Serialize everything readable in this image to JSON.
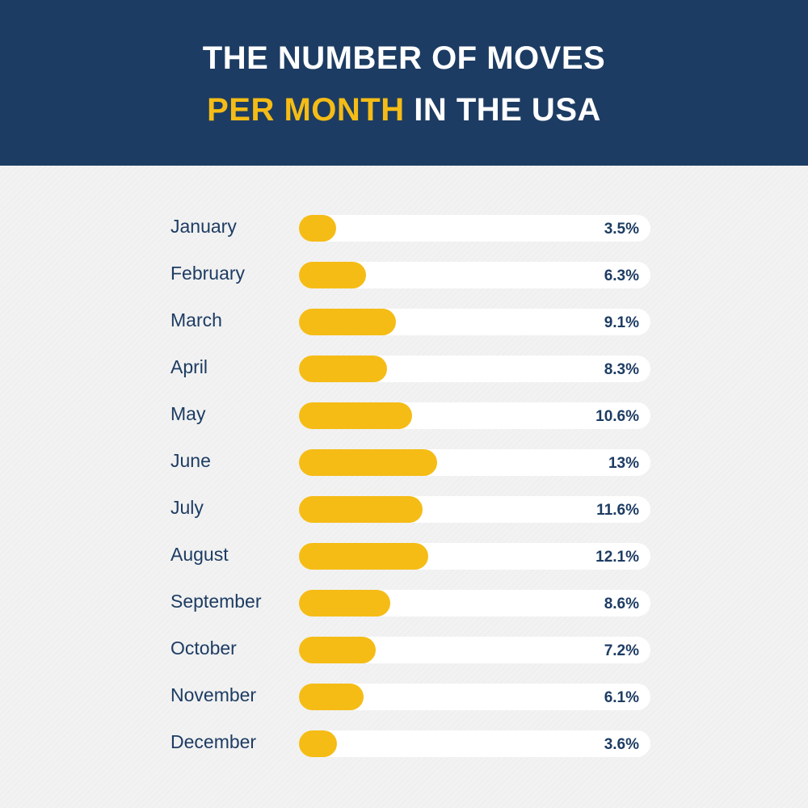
{
  "header": {
    "title_line1": "THE NUMBER OF MOVES",
    "title_line2_accent": "PER MONTH",
    "title_line2_rest": " IN THE USA"
  },
  "colors": {
    "header_bg": "#1d3c63",
    "accent": "#f5bc16",
    "text": "#1d3c63",
    "track": "#ffffff"
  },
  "chart_data": {
    "type": "bar",
    "orientation": "horizontal",
    "title": "THE NUMBER OF MOVES PER MONTH IN THE USA",
    "categories": [
      "January",
      "February",
      "March",
      "April",
      "May",
      "June",
      "July",
      "August",
      "September",
      "October",
      "November",
      "December"
    ],
    "values": [
      3.5,
      6.3,
      9.1,
      8.3,
      10.6,
      13,
      11.6,
      12.1,
      8.6,
      7.2,
      6.1,
      3.6
    ],
    "value_labels": [
      "3.5%",
      "6.3%",
      "9.1%",
      "8.3%",
      "10.6%",
      "13%",
      "11.6%",
      "12.1%",
      "8.6%",
      "7.2%",
      "6.1%",
      "3.6%"
    ],
    "xlim": [
      0,
      33
    ],
    "grid": false,
    "legend": "none"
  }
}
